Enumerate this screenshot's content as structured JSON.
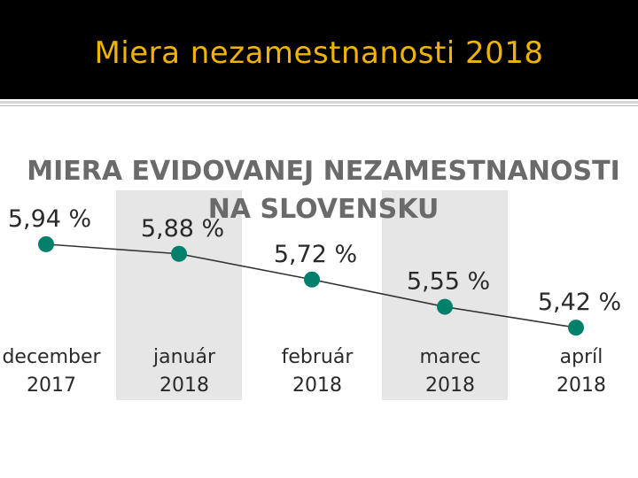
{
  "slide": {
    "title": "Miera nezamestnanosti 2018"
  },
  "colors": {
    "title": "#f0b400",
    "point": "#00806b",
    "line": "#333333",
    "band": "#e6e6e6"
  },
  "chart_data": {
    "type": "line",
    "title_lines": [
      "MIERA EVIDOVANEJ NEZAMESTNANOSTI",
      "NA SLOVENSKU"
    ],
    "categories": [
      [
        "december",
        "2017"
      ],
      [
        "január",
        "2018"
      ],
      [
        "február",
        "2018"
      ],
      [
        "marec",
        "2018"
      ],
      [
        "apríl",
        "2018"
      ]
    ],
    "values": [
      5.94,
      5.88,
      5.72,
      5.55,
      5.42
    ],
    "data_labels": [
      "5,94 %",
      "5,88 %",
      "5,72 %",
      "5,55 %",
      "5,42 %"
    ],
    "shaded_columns": [
      1,
      3
    ],
    "ylim": [
      5.2,
      6.0
    ],
    "xlabel": "",
    "ylabel": "",
    "grid": false,
    "legend": "none"
  }
}
